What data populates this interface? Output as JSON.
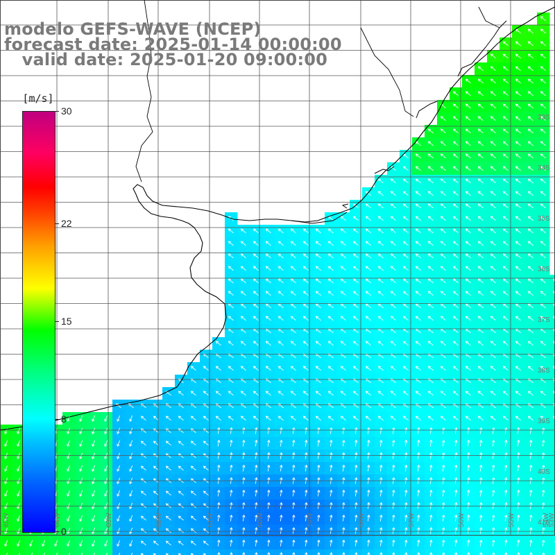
{
  "title": {
    "line1": "modelo GEFS-WAVE (NCEP)",
    "line2": "forecast date: 2025-01-14 00:00:00",
    "line3": "   valid date: 2025-01-20 09:00:00"
  },
  "legend": {
    "unit": "[m/s]",
    "ticks": [
      {
        "value": 30,
        "label": "30"
      },
      {
        "value": 22,
        "label": "22"
      },
      {
        "value": 15,
        "label": "15"
      },
      {
        "value": 8,
        "label": "8"
      },
      {
        "value": 0,
        "label": "0"
      }
    ],
    "min": 0,
    "max": 30
  },
  "lat_labels": [
    "33S",
    "34S",
    "35S",
    "36S",
    "37S",
    "38S",
    "39S",
    "40S",
    "41S"
  ],
  "lon_labels": [
    "65W",
    "64W",
    "63W",
    "62W",
    "61W",
    "60W",
    "59W",
    "58W",
    "57W",
    "56W",
    "55W",
    "54W",
    "53W"
  ],
  "colors": {
    "land": "#ffffff",
    "coast": "#000000",
    "grid": "#555555",
    "arrow": "#ffffff",
    "title_text": "#7a7a7a"
  }
}
